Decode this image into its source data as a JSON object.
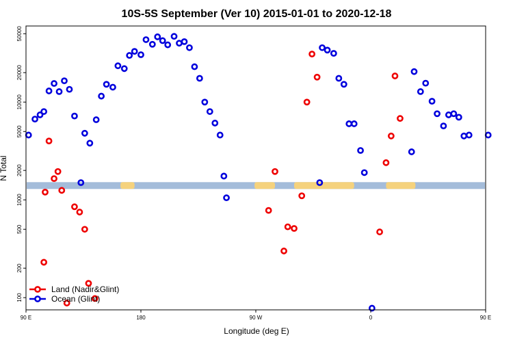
{
  "chart_data": {
    "type": "scatter",
    "title": "10S-5S September (Ver 10)   2015-01-01 to 2020-12-18",
    "xlabel": "Longitude (deg E)",
    "ylabel": "N Total",
    "x_scale": "linear",
    "y_scale": "log",
    "xlim": [
      90,
      450
    ],
    "ylim": [
      75,
      60000
    ],
    "x_ticks": [
      {
        "value": 90,
        "label": "90 E"
      },
      {
        "value": 180,
        "label": "180"
      },
      {
        "value": 270,
        "label": "90 W"
      },
      {
        "value": 360,
        "label": "0"
      },
      {
        "value": 450,
        "label": "90 E"
      },
      {
        "value": 540,
        "label": "180"
      }
    ],
    "y_ticks": [
      {
        "value": 100,
        "label": "100"
      },
      {
        "value": 200,
        "label": "200"
      },
      {
        "value": 500,
        "label": "500"
      },
      {
        "value": 1000,
        "label": "1000"
      },
      {
        "value": 2000,
        "label": "2000"
      },
      {
        "value": 5000,
        "label": "5000"
      },
      {
        "value": 10000,
        "label": "10000"
      },
      {
        "value": 20000,
        "label": "20000"
      },
      {
        "value": 50000,
        "label": "50000"
      }
    ],
    "x_tick_labels_note": "",
    "grid": false,
    "legend_position": "bottom-left",
    "map_strip": {
      "y_level": 1400,
      "ocean_color": "#a4bcda",
      "land_color": "#f5d27d",
      "land_x_ranges": [
        [
          164,
          175
        ],
        [
          269,
          285
        ],
        [
          300,
          347
        ],
        [
          372,
          395
        ],
        [
          512,
          525
        ],
        [
          629,
          645
        ]
      ]
    },
    "series": [
      {
        "name": "Land (Nadir&Glint)",
        "color": "#ee0000",
        "points": [
          {
            "x": 104,
            "y": 230
          },
          {
            "x": 105,
            "y": 1200
          },
          {
            "x": 108,
            "y": 4000
          },
          {
            "x": 112,
            "y": 1650
          },
          {
            "x": 115,
            "y": 1950
          },
          {
            "x": 118,
            "y": 1250
          },
          {
            "x": 122,
            "y": 88
          },
          {
            "x": 128,
            "y": 850
          },
          {
            "x": 132,
            "y": 750
          },
          {
            "x": 136,
            "y": 500
          },
          {
            "x": 139,
            "y": 140
          },
          {
            "x": 144,
            "y": 98
          },
          {
            "x": 280,
            "y": 780
          },
          {
            "x": 285,
            "y": 1950
          },
          {
            "x": 292,
            "y": 300
          },
          {
            "x": 295,
            "y": 530
          },
          {
            "x": 300,
            "y": 510
          },
          {
            "x": 306,
            "y": 1100
          },
          {
            "x": 310,
            "y": 10000
          },
          {
            "x": 314,
            "y": 31000
          },
          {
            "x": 318,
            "y": 18000
          },
          {
            "x": 367,
            "y": 470
          },
          {
            "x": 372,
            "y": 2400
          },
          {
            "x": 376,
            "y": 4500
          },
          {
            "x": 379,
            "y": 18500
          },
          {
            "x": 383,
            "y": 6800
          }
        ]
      },
      {
        "name": "Ocean (Glint)",
        "color": "#0000dd",
        "points": [
          {
            "x": 92,
            "y": 4600
          },
          {
            "x": 97,
            "y": 6700
          },
          {
            "x": 101,
            "y": 7400
          },
          {
            "x": 104,
            "y": 8000
          },
          {
            "x": 108,
            "y": 13000
          },
          {
            "x": 112,
            "y": 15500
          },
          {
            "x": 116,
            "y": 12800
          },
          {
            "x": 120,
            "y": 16500
          },
          {
            "x": 124,
            "y": 13500
          },
          {
            "x": 128,
            "y": 7200
          },
          {
            "x": 133,
            "y": 1500
          },
          {
            "x": 136,
            "y": 4800
          },
          {
            "x": 140,
            "y": 3800
          },
          {
            "x": 145,
            "y": 6600
          },
          {
            "x": 149,
            "y": 11500
          },
          {
            "x": 153,
            "y": 15200
          },
          {
            "x": 158,
            "y": 14200
          },
          {
            "x": 162,
            "y": 23500
          },
          {
            "x": 167,
            "y": 22000
          },
          {
            "x": 171,
            "y": 30000
          },
          {
            "x": 175,
            "y": 33000
          },
          {
            "x": 180,
            "y": 30500
          },
          {
            "x": 184,
            "y": 43500
          },
          {
            "x": 189,
            "y": 39000
          },
          {
            "x": 193,
            "y": 46500
          },
          {
            "x": 197,
            "y": 42500
          },
          {
            "x": 201,
            "y": 38500
          },
          {
            "x": 206,
            "y": 47000
          },
          {
            "x": 210,
            "y": 40000
          },
          {
            "x": 214,
            "y": 41500
          },
          {
            "x": 218,
            "y": 36000
          },
          {
            "x": 222,
            "y": 23000
          },
          {
            "x": 226,
            "y": 17500
          },
          {
            "x": 230,
            "y": 10000
          },
          {
            "x": 234,
            "y": 8000
          },
          {
            "x": 238,
            "y": 6100
          },
          {
            "x": 242,
            "y": 4600
          },
          {
            "x": 245,
            "y": 1750
          },
          {
            "x": 247,
            "y": 1050
          },
          {
            "x": 320,
            "y": 1500
          },
          {
            "x": 322,
            "y": 36000
          },
          {
            "x": 326,
            "y": 34000
          },
          {
            "x": 331,
            "y": 31500
          },
          {
            "x": 335,
            "y": 17500
          },
          {
            "x": 339,
            "y": 15200
          },
          {
            "x": 343,
            "y": 6000
          },
          {
            "x": 347,
            "y": 6000
          },
          {
            "x": 352,
            "y": 3200
          },
          {
            "x": 355,
            "y": 1900
          },
          {
            "x": 361,
            "y": 78
          },
          {
            "x": 392,
            "y": 3100
          },
          {
            "x": 394,
            "y": 20500
          },
          {
            "x": 399,
            "y": 12800
          },
          {
            "x": 403,
            "y": 15600
          },
          {
            "x": 408,
            "y": 10200
          },
          {
            "x": 412,
            "y": 7600
          },
          {
            "x": 417,
            "y": 5700
          },
          {
            "x": 421,
            "y": 7400
          },
          {
            "x": 425,
            "y": 7600
          },
          {
            "x": 429,
            "y": 7000
          },
          {
            "x": 433,
            "y": 4500
          },
          {
            "x": 437,
            "y": 4600
          }
        ]
      }
    ]
  }
}
